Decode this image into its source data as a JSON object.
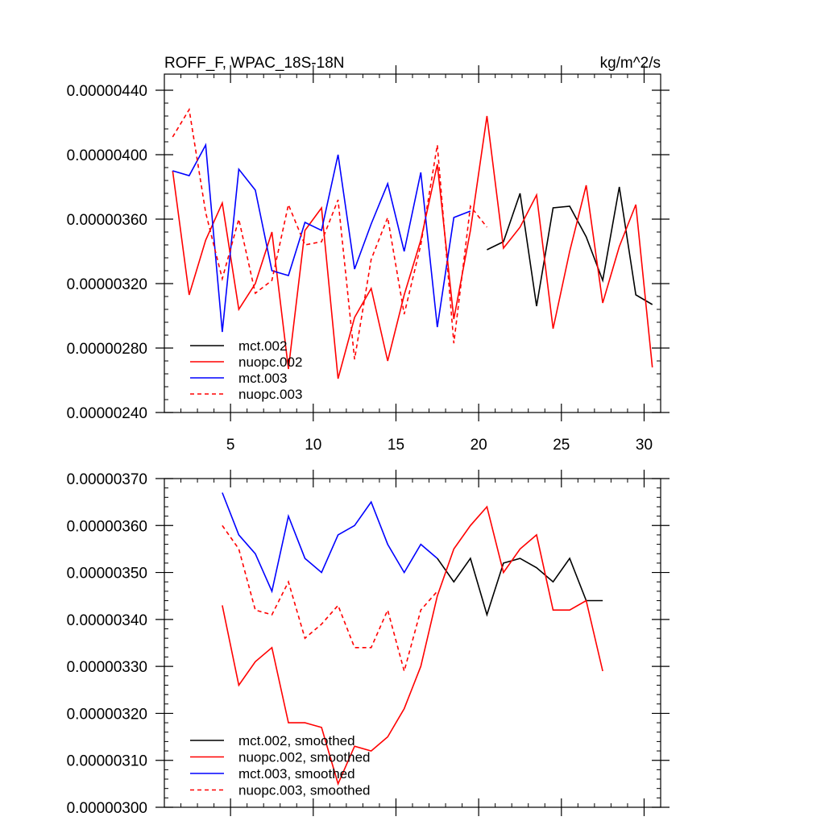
{
  "chart_data": [
    {
      "type": "line",
      "title": "ROFF_F, WPAC_18S-18N",
      "units": "kg/m^2/s",
      "xlim": [
        1,
        31
      ],
      "ylim": [
        2.4e-06,
        4.5e-06
      ],
      "x_ticks": [
        5,
        10,
        15,
        20,
        25,
        30
      ],
      "x_tick_labels": [
        "5",
        "10",
        "15",
        "20",
        "25",
        "30"
      ],
      "y_ticks": [
        2.4e-06,
        2.8e-06,
        3.2e-06,
        3.6e-06,
        4e-06,
        4.4e-06
      ],
      "y_tick_labels": [
        "0.00000240",
        "0.00000280",
        "0.00000320",
        "0.00000360",
        "0.00000400",
        "0.00000440"
      ],
      "series": [
        {
          "name": "mct.002",
          "color": "#000000",
          "dash": false,
          "x": [
            20.5,
            21.5,
            22.5,
            23.5,
            24.5,
            25.5,
            26.5,
            27.5,
            28.5,
            29.5,
            30.5
          ],
          "values": [
            3.41e-06,
            3.46e-06,
            3.76e-06,
            3.06e-06,
            3.67e-06,
            3.68e-06,
            3.49e-06,
            3.22e-06,
            3.8e-06,
            3.13e-06,
            3.07e-06
          ]
        },
        {
          "name": "nuopc.002",
          "color": "#ff0000",
          "dash": false,
          "x": [
            1.5,
            2.5,
            3.5,
            4.5,
            5.5,
            6.5,
            7.5,
            8.5,
            9.5,
            10.5,
            11.5,
            12.5,
            13.5,
            14.5,
            15.5,
            16.5,
            17.5,
            18.5,
            19.5,
            20.5,
            21.5,
            22.5,
            23.5,
            24.5,
            25.5,
            26.5,
            27.5,
            28.5,
            29.5,
            30.5
          ],
          "values": [
            3.9e-06,
            3.13e-06,
            3.47e-06,
            3.7e-06,
            3.04e-06,
            3.2e-06,
            3.52e-06,
            2.67e-06,
            3.53e-06,
            3.67e-06,
            2.61e-06,
            2.99e-06,
            3.17e-06,
            2.72e-06,
            3.13e-06,
            3.47e-06,
            3.94e-06,
            2.98e-06,
            3.53e-06,
            4.24e-06,
            3.42e-06,
            3.55e-06,
            3.75e-06,
            2.92e-06,
            3.4e-06,
            3.81e-06,
            3.08e-06,
            3.43e-06,
            3.69e-06,
            2.68e-06
          ]
        },
        {
          "name": "mct.003",
          "color": "#0000ff",
          "dash": false,
          "x": [
            1.5,
            2.5,
            3.5,
            4.5,
            5.5,
            6.5,
            7.5,
            8.5,
            9.5,
            10.5,
            11.5,
            12.5,
            13.5,
            14.5,
            15.5,
            16.5,
            17.5,
            18.5,
            19.5
          ],
          "values": [
            3.9e-06,
            3.87e-06,
            4.06e-06,
            2.9e-06,
            3.91e-06,
            3.78e-06,
            3.28e-06,
            3.25e-06,
            3.58e-06,
            3.53e-06,
            4e-06,
            3.29e-06,
            3.57e-06,
            3.82e-06,
            3.4e-06,
            3.89e-06,
            2.93e-06,
            3.61e-06,
            3.65e-06
          ]
        },
        {
          "name": "nuopc.003",
          "color": "#ff0000",
          "dash": true,
          "x": [
            1.5,
            2.5,
            3.5,
            4.5,
            5.5,
            6.5,
            7.5,
            8.5,
            9.5,
            10.5,
            11.5,
            12.5,
            13.5,
            14.5,
            15.5,
            16.5,
            17.5,
            18.5,
            19.5,
            20.5
          ],
          "values": [
            4.11e-06,
            4.28e-06,
            3.64e-06,
            3.23e-06,
            3.6e-06,
            3.14e-06,
            3.22e-06,
            3.69e-06,
            3.44e-06,
            3.46e-06,
            3.72e-06,
            2.73e-06,
            3.35e-06,
            3.61e-06,
            3.01e-06,
            3.44e-06,
            4.06e-06,
            2.83e-06,
            3.68e-06,
            3.55e-06
          ]
        }
      ]
    },
    {
      "type": "line",
      "title": "",
      "units": "",
      "xlim": [
        1,
        31
      ],
      "ylim": [
        3e-06,
        3.7e-06
      ],
      "x_ticks": [
        5,
        10,
        15,
        20,
        25,
        30
      ],
      "x_tick_labels": [],
      "y_ticks": [
        3e-06,
        3.1e-06,
        3.2e-06,
        3.3e-06,
        3.4e-06,
        3.5e-06,
        3.6e-06,
        3.7e-06
      ],
      "y_tick_labels": [
        "0.00000300",
        "0.00000310",
        "0.00000320",
        "0.00000330",
        "0.00000340",
        "0.00000350",
        "0.00000360",
        "0.00000370"
      ],
      "series": [
        {
          "name": "mct.002, smoothed",
          "color": "#000000",
          "dash": false,
          "x": [
            17.5,
            18.5,
            19.5,
            20.5,
            21.5,
            22.5,
            23.5,
            24.5,
            25.5,
            26.5,
            27.5
          ],
          "values": [
            3.53e-06,
            3.48e-06,
            3.53e-06,
            3.41e-06,
            3.52e-06,
            3.53e-06,
            3.51e-06,
            3.48e-06,
            3.53e-06,
            3.44e-06,
            3.44e-06
          ]
        },
        {
          "name": "nuopc.002, smoothed",
          "color": "#ff0000",
          "dash": false,
          "x": [
            4.5,
            5.5,
            6.5,
            7.5,
            8.5,
            9.5,
            10.5,
            11.5,
            12.5,
            13.5,
            14.5,
            15.5,
            16.5,
            17.5,
            18.5,
            19.5,
            20.5,
            21.5,
            22.5,
            23.5,
            24.5,
            25.5,
            26.5,
            27.5
          ],
          "values": [
            3.43e-06,
            3.26e-06,
            3.31e-06,
            3.34e-06,
            3.18e-06,
            3.18e-06,
            3.17e-06,
            3.05e-06,
            3.13e-06,
            3.12e-06,
            3.15e-06,
            3.21e-06,
            3.3e-06,
            3.45e-06,
            3.55e-06,
            3.6e-06,
            3.64e-06,
            3.5e-06,
            3.55e-06,
            3.58e-06,
            3.42e-06,
            3.42e-06,
            3.44e-06,
            3.29e-06
          ]
        },
        {
          "name": "mct.003, smoothed",
          "color": "#0000ff",
          "dash": false,
          "x": [
            4.5,
            5.5,
            6.5,
            7.5,
            8.5,
            9.5,
            10.5,
            11.5,
            12.5,
            13.5,
            14.5,
            15.5,
            16.5,
            17.5
          ],
          "values": [
            3.67e-06,
            3.58e-06,
            3.54e-06,
            3.46e-06,
            3.62e-06,
            3.53e-06,
            3.5e-06,
            3.58e-06,
            3.6e-06,
            3.65e-06,
            3.56e-06,
            3.5e-06,
            3.56e-06,
            3.53e-06
          ]
        },
        {
          "name": "nuopc.003, smoothed",
          "color": "#ff0000",
          "dash": true,
          "x": [
            4.5,
            5.5,
            6.5,
            7.5,
            8.5,
            9.5,
            10.5,
            11.5,
            12.5,
            13.5,
            14.5,
            15.5,
            16.5,
            17.5
          ],
          "values": [
            3.6e-06,
            3.55e-06,
            3.42e-06,
            3.41e-06,
            3.48e-06,
            3.36e-06,
            3.39e-06,
            3.43e-06,
            3.34e-06,
            3.34e-06,
            3.42e-06,
            3.29e-06,
            3.42e-06,
            3.46e-06
          ]
        }
      ]
    }
  ]
}
